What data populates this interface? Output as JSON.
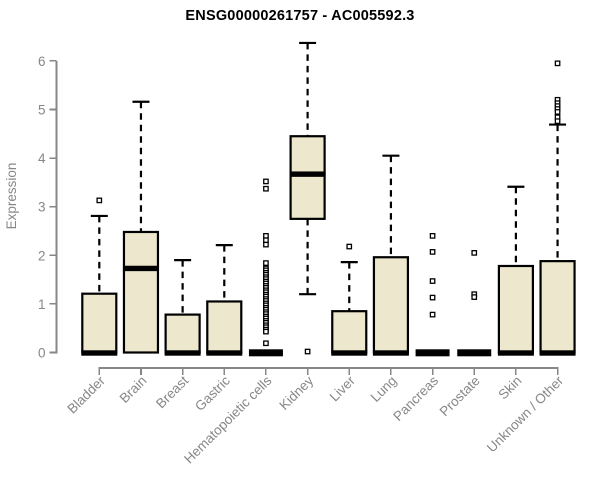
{
  "chart_data": {
    "type": "box",
    "title": "ENSG00000261757 - AC005592.3",
    "ylabel": "Expression",
    "xlabel": "",
    "ylim": [
      0,
      6
    ],
    "yticks": [
      0,
      1,
      2,
      3,
      4,
      5,
      6
    ],
    "grid": false,
    "legend": "none",
    "colors": {
      "box_fill": "#EDE8CD",
      "box_stroke": "#000000",
      "median": "#000000",
      "whisker": "#000000",
      "outlier_fill": "#ffffff",
      "axis": "#878787",
      "title": "#000000",
      "background": "#ffffff"
    },
    "categories": [
      "Bladder",
      "Brain",
      "Breast",
      "Gastric",
      "Hematopoietic cells",
      "Kidney",
      "Liver",
      "Lung",
      "Pancreas",
      "Prostate",
      "Skin",
      "Unknown / Other"
    ],
    "boxes": [
      {
        "label": "Bladder",
        "q1": 0,
        "median": 0,
        "q3": 1.21,
        "whisker_low": 0,
        "whisker_high": 2.81,
        "outliers": [
          3.13
        ]
      },
      {
        "label": "Brain",
        "q1": 0,
        "median": 1.74,
        "q3": 2.48,
        "whisker_low": 0,
        "whisker_high": 5.16,
        "outliers": []
      },
      {
        "label": "Breast",
        "q1": 0,
        "median": 0,
        "q3": 0.78,
        "whisker_low": 0,
        "whisker_high": 1.9,
        "outliers": []
      },
      {
        "label": "Gastric",
        "q1": 0,
        "median": 0,
        "q3": 1.05,
        "whisker_low": 0,
        "whisker_high": 2.21,
        "outliers": []
      },
      {
        "label": "Hematopoietic cells",
        "q1": 0,
        "median": 0,
        "q3": 0,
        "whisker_low": 0,
        "whisker_high": 0,
        "outliers": [
          3.52,
          3.37,
          2.4,
          2.31,
          2.22,
          1.84,
          1.73,
          1.69,
          1.64,
          1.6,
          1.55,
          1.51,
          1.46,
          1.42,
          1.37,
          1.33,
          1.28,
          1.24,
          1.19,
          1.15,
          1.1,
          1.06,
          1.01,
          0.97,
          0.92,
          0.88,
          0.83,
          0.79,
          0.74,
          0.7,
          0.65,
          0.61,
          0.56,
          0.52,
          0.47,
          0.43,
          0.19
        ]
      },
      {
        "label": "Kidney",
        "q1": 2.75,
        "median": 3.68,
        "q3": 4.45,
        "whisker_low": 1.2,
        "whisker_high": 6.37,
        "outliers": [
          0.02
        ]
      },
      {
        "label": "Liver",
        "q1": 0,
        "median": 0,
        "q3": 0.85,
        "whisker_low": 0,
        "whisker_high": 1.86,
        "outliers": [
          2.18
        ]
      },
      {
        "label": "Lung",
        "q1": 0,
        "median": 0,
        "q3": 1.96,
        "whisker_low": 0,
        "whisker_high": 4.05,
        "outliers": []
      },
      {
        "label": "Pancreas",
        "q1": 0,
        "median": 0,
        "q3": 0,
        "whisker_low": 0,
        "whisker_high": 0,
        "outliers": [
          2.4,
          2.07,
          1.47,
          1.13,
          0.78
        ]
      },
      {
        "label": "Prostate",
        "q1": 0,
        "median": 0,
        "q3": 0,
        "whisker_low": 0,
        "whisker_high": 0,
        "outliers": [
          2.05,
          1.2,
          1.14
        ]
      },
      {
        "label": "Skin",
        "q1": 0,
        "median": 0,
        "q3": 1.78,
        "whisker_low": 0,
        "whisker_high": 3.41,
        "outliers": []
      },
      {
        "label": "Unknown / Other",
        "q1": 0,
        "median": 0,
        "q3": 1.88,
        "whisker_low": 0,
        "whisker_high": 4.69,
        "outliers": [
          5.95,
          5.2,
          5.13,
          5.07,
          5.01,
          4.95,
          4.84,
          4.76
        ]
      }
    ]
  }
}
